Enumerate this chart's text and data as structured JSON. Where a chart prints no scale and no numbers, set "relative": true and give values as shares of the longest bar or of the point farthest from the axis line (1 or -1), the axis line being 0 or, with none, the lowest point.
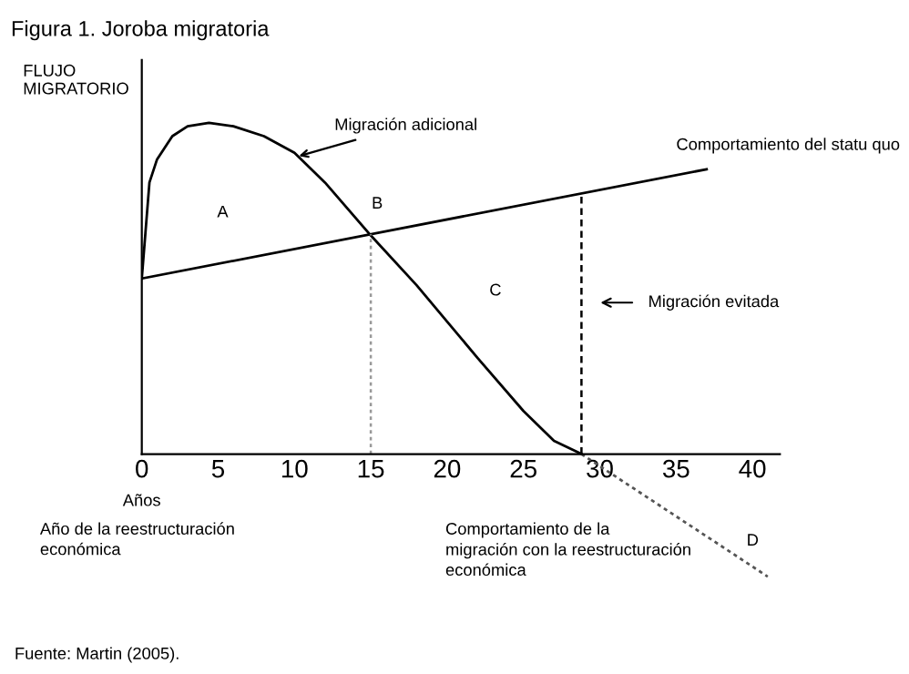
{
  "chart_data": {
    "type": "line",
    "title": "Figura 1. Joroba migratoria",
    "xlabel": "Años",
    "ylabel": "FLUJO\nMIGRATORIO",
    "relative": true,
    "xlim": [
      0,
      41.8
    ],
    "xticks": [
      0,
      5,
      10,
      15,
      20,
      25,
      30,
      35,
      40
    ],
    "grid": false,
    "legend": false,
    "marker": "none",
    "series": [
      {
        "color": "#000000",
        "line_style": "solid",
        "x": [
          0,
          37
        ],
        "values": [
          0.53,
          0.86
        ]
      },
      {
        "color": "#000000",
        "line_style": "solid",
        "x": [
          0,
          0.5,
          1,
          2,
          3,
          4.4,
          6,
          8,
          10,
          12,
          15,
          18,
          20,
          22,
          25,
          27,
          28.8
        ],
        "values": [
          0.53,
          0.82,
          0.89,
          0.96,
          0.99,
          1.0,
          0.99,
          0.96,
          0.91,
          0.82,
          0.66,
          0.51,
          0.4,
          0.29,
          0.13,
          0.04,
          0
        ]
      },
      {
        "color": "#555555",
        "line_style": "dotted",
        "x": [
          28.8,
          41
        ],
        "values": [
          0,
          -0.37
        ]
      }
    ],
    "ref_lines": [
      {
        "axis": "x",
        "value": 15,
        "color": "#999999",
        "line_style": "dotted"
      },
      {
        "axis": "x",
        "value": 28.8,
        "color": "#000000",
        "line_style": "dashed"
      }
    ],
    "annotations": [
      "A",
      "B",
      "C",
      "D",
      {
        "text": "Migración adicional",
        "x": 10.3,
        "y": 0.9
      },
      "Migración evitada",
      "Comportamiento del statu quo",
      "Año de la reestructuración\neconómica",
      "Comportamiento de la\nmigración con la reestructuración\neconómica",
      "Fuente: Martin (2005)."
    ]
  }
}
